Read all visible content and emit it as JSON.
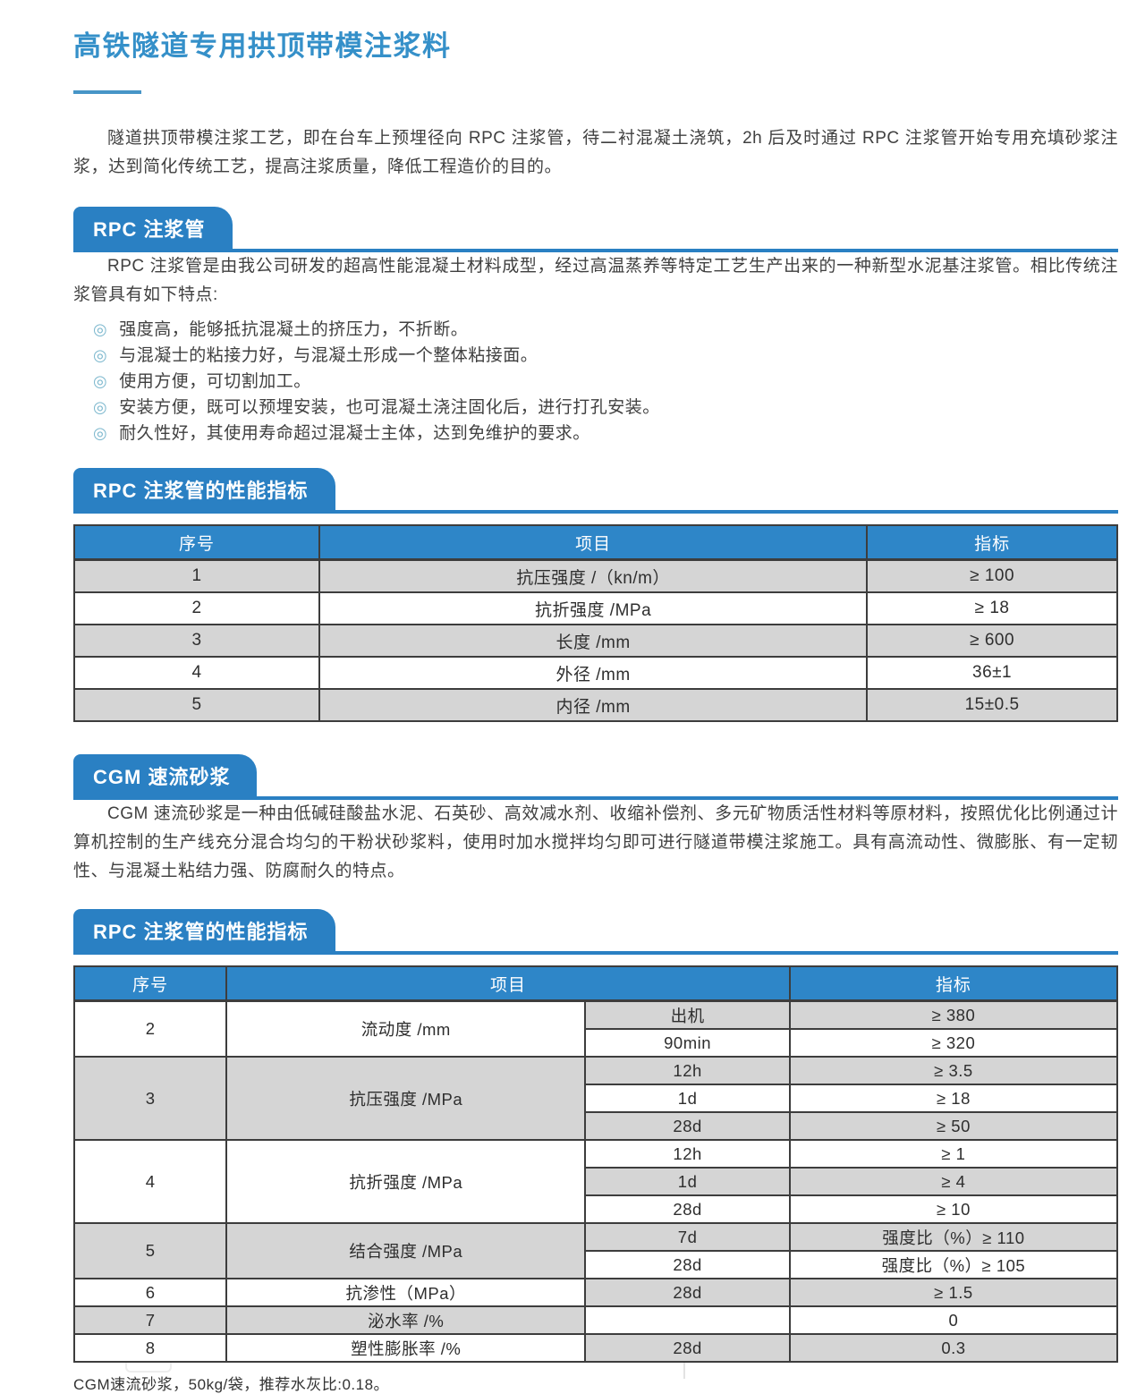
{
  "page": {
    "title": "高铁隧道专用拱顶带模注浆料",
    "intro": "隧道拱顶带模注浆工艺，即在台车上预埋径向 RPC 注浆管，待二衬混凝土浇筑，2h 后及时通过 RPC 注浆管开始专用充填砂浆注浆，达到简化传统工艺，提高注浆质量，降低工程造价的目的。",
    "footer_note": "CGM速流砂浆，50kg/袋，推荐水灰比:0.18。"
  },
  "list_marker": "◎",
  "colors": {
    "accent_blue": "#2a80c3",
    "table_header_blue": "#2e86c8",
    "title_blue": "#3590c9",
    "row_gray": "#d5d5d5",
    "border_dark": "#3d3d3d",
    "bullet_teal": "#7db8ce"
  },
  "sections": [
    {
      "banner": "RPC 注浆管",
      "paragraph": "RPC 注浆管是由我公司研发的超高性能混凝土材料成型，经过高温蒸养等特定工艺生产出来的一种新型水泥基注浆管。相比传统注浆管具有如下特点:",
      "bullets": [
        "强度高，能够抵抗混凝土的挤压力，不折断。",
        "与混凝士的粘接力好，与混凝土形成一个整体粘接面。",
        "使用方便，可切割加工。",
        "安装方便，既可以预埋安装，也可混凝土浇注固化后，进行打孔安装。",
        "耐久性好，其使用寿命超过混凝士主体，达到免维护的要求。"
      ]
    },
    {
      "banner": "RPC 注浆管的性能指标"
    },
    {
      "banner": "CGM 速流砂浆",
      "paragraph": "CGM 速流砂浆是一种由低碱硅酸盐水泥、石英砂、高效减水剂、收缩补偿剂、多元矿物质活性材料等原材料，按照优化比例通过计算机控制的生产线充分混合均匀的干粉状砂浆料，使用时加水搅拌均匀即可进行隧道带模注浆施工。具有高流动性、微膨胀、有一定韧性、与混凝土粘结力强、防腐耐久的特点。"
    },
    {
      "banner": "RPC 注浆管的性能指标"
    }
  ],
  "tables": [
    {
      "col_widths": [
        "23.5%",
        "52.5%",
        "24%"
      ],
      "headers": [
        {
          "t": "序号"
        },
        {
          "t": "项目"
        },
        {
          "t": "指标"
        }
      ],
      "rows": [
        [
          {
            "t": "1",
            "bg": "g"
          },
          {
            "t": "抗压强度 /（kn/m）",
            "bg": "g"
          },
          {
            "t": "≥ 100",
            "bg": "g"
          }
        ],
        [
          {
            "t": "2",
            "bg": "w"
          },
          {
            "t": "抗折强度 /MPa",
            "bg": "w"
          },
          {
            "t": "≥ 18",
            "bg": "w"
          }
        ],
        [
          {
            "t": "3",
            "bg": "g"
          },
          {
            "t": "长度 /mm",
            "bg": "g"
          },
          {
            "t": "≥ 600",
            "bg": "g"
          }
        ],
        [
          {
            "t": "4",
            "bg": "w"
          },
          {
            "t": "外径 /mm",
            "bg": "w"
          },
          {
            "t": "36±1",
            "bg": "w"
          }
        ],
        [
          {
            "t": "5",
            "bg": "g"
          },
          {
            "t": "内径 /mm",
            "bg": "g"
          },
          {
            "t": "15±0.5",
            "bg": "g"
          }
        ]
      ]
    },
    {
      "col_widths": [
        "14.6%",
        "34.4%",
        "19.6%",
        "31.4%"
      ],
      "headers": [
        {
          "t": "序号"
        },
        {
          "t": "项目",
          "cs": 2
        },
        {
          "t": "指标"
        }
      ],
      "rows": [
        [
          {
            "t": "2",
            "rs": 2,
            "bg": "w"
          },
          {
            "t": "流动度 /mm",
            "rs": 2,
            "bg": "w"
          },
          {
            "t": "出机",
            "bg": "g"
          },
          {
            "t": "≥ 380",
            "bg": "g"
          }
        ],
        [
          {
            "t": "90min",
            "bg": "w"
          },
          {
            "t": "≥ 320",
            "bg": "w"
          }
        ],
        [
          {
            "t": "3",
            "rs": 3,
            "bg": "g"
          },
          {
            "t": "抗压强度 /MPa",
            "rs": 3,
            "bg": "g"
          },
          {
            "t": "12h",
            "bg": "g"
          },
          {
            "t": "≥ 3.5",
            "bg": "g"
          }
        ],
        [
          {
            "t": "1d",
            "bg": "w"
          },
          {
            "t": "≥ 18",
            "bg": "w"
          }
        ],
        [
          {
            "t": "28d",
            "bg": "g"
          },
          {
            "t": "≥ 50",
            "bg": "g"
          }
        ],
        [
          {
            "t": "4",
            "rs": 3,
            "bg": "w"
          },
          {
            "t": "抗折强度 /MPa",
            "rs": 3,
            "bg": "w"
          },
          {
            "t": "12h",
            "bg": "w"
          },
          {
            "t": "≥ 1",
            "bg": "w"
          }
        ],
        [
          {
            "t": "1d",
            "bg": "g"
          },
          {
            "t": "≥ 4",
            "bg": "g"
          }
        ],
        [
          {
            "t": "28d",
            "bg": "w"
          },
          {
            "t": "≥ 10",
            "bg": "w"
          }
        ],
        [
          {
            "t": "5",
            "rs": 2,
            "bg": "g"
          },
          {
            "t": "结合强度 /MPa",
            "rs": 2,
            "bg": "g"
          },
          {
            "t": "7d",
            "bg": "g"
          },
          {
            "t": "强度比（%）≥ 110",
            "bg": "g"
          }
        ],
        [
          {
            "t": "28d",
            "bg": "w"
          },
          {
            "t": "强度比（%）≥ 105",
            "bg": "w"
          }
        ],
        [
          {
            "t": "6",
            "bg": "w"
          },
          {
            "t": "抗渗性（MPa）",
            "bg": "w"
          },
          {
            "t": "28d",
            "bg": "g"
          },
          {
            "t": "≥ 1.5",
            "bg": "g"
          }
        ],
        [
          {
            "t": "7",
            "bg": "g"
          },
          {
            "t": "泌水率 /%",
            "bg": "g"
          },
          {
            "t": "",
            "bg": "w"
          },
          {
            "t": "0",
            "bg": "w"
          }
        ],
        [
          {
            "t": "8",
            "bg": "w"
          },
          {
            "t": "塑性膨胀率 /%",
            "bg": "w"
          },
          {
            "t": "28d",
            "bg": "g"
          },
          {
            "t": "0.3",
            "bg": "g"
          }
        ]
      ]
    }
  ]
}
